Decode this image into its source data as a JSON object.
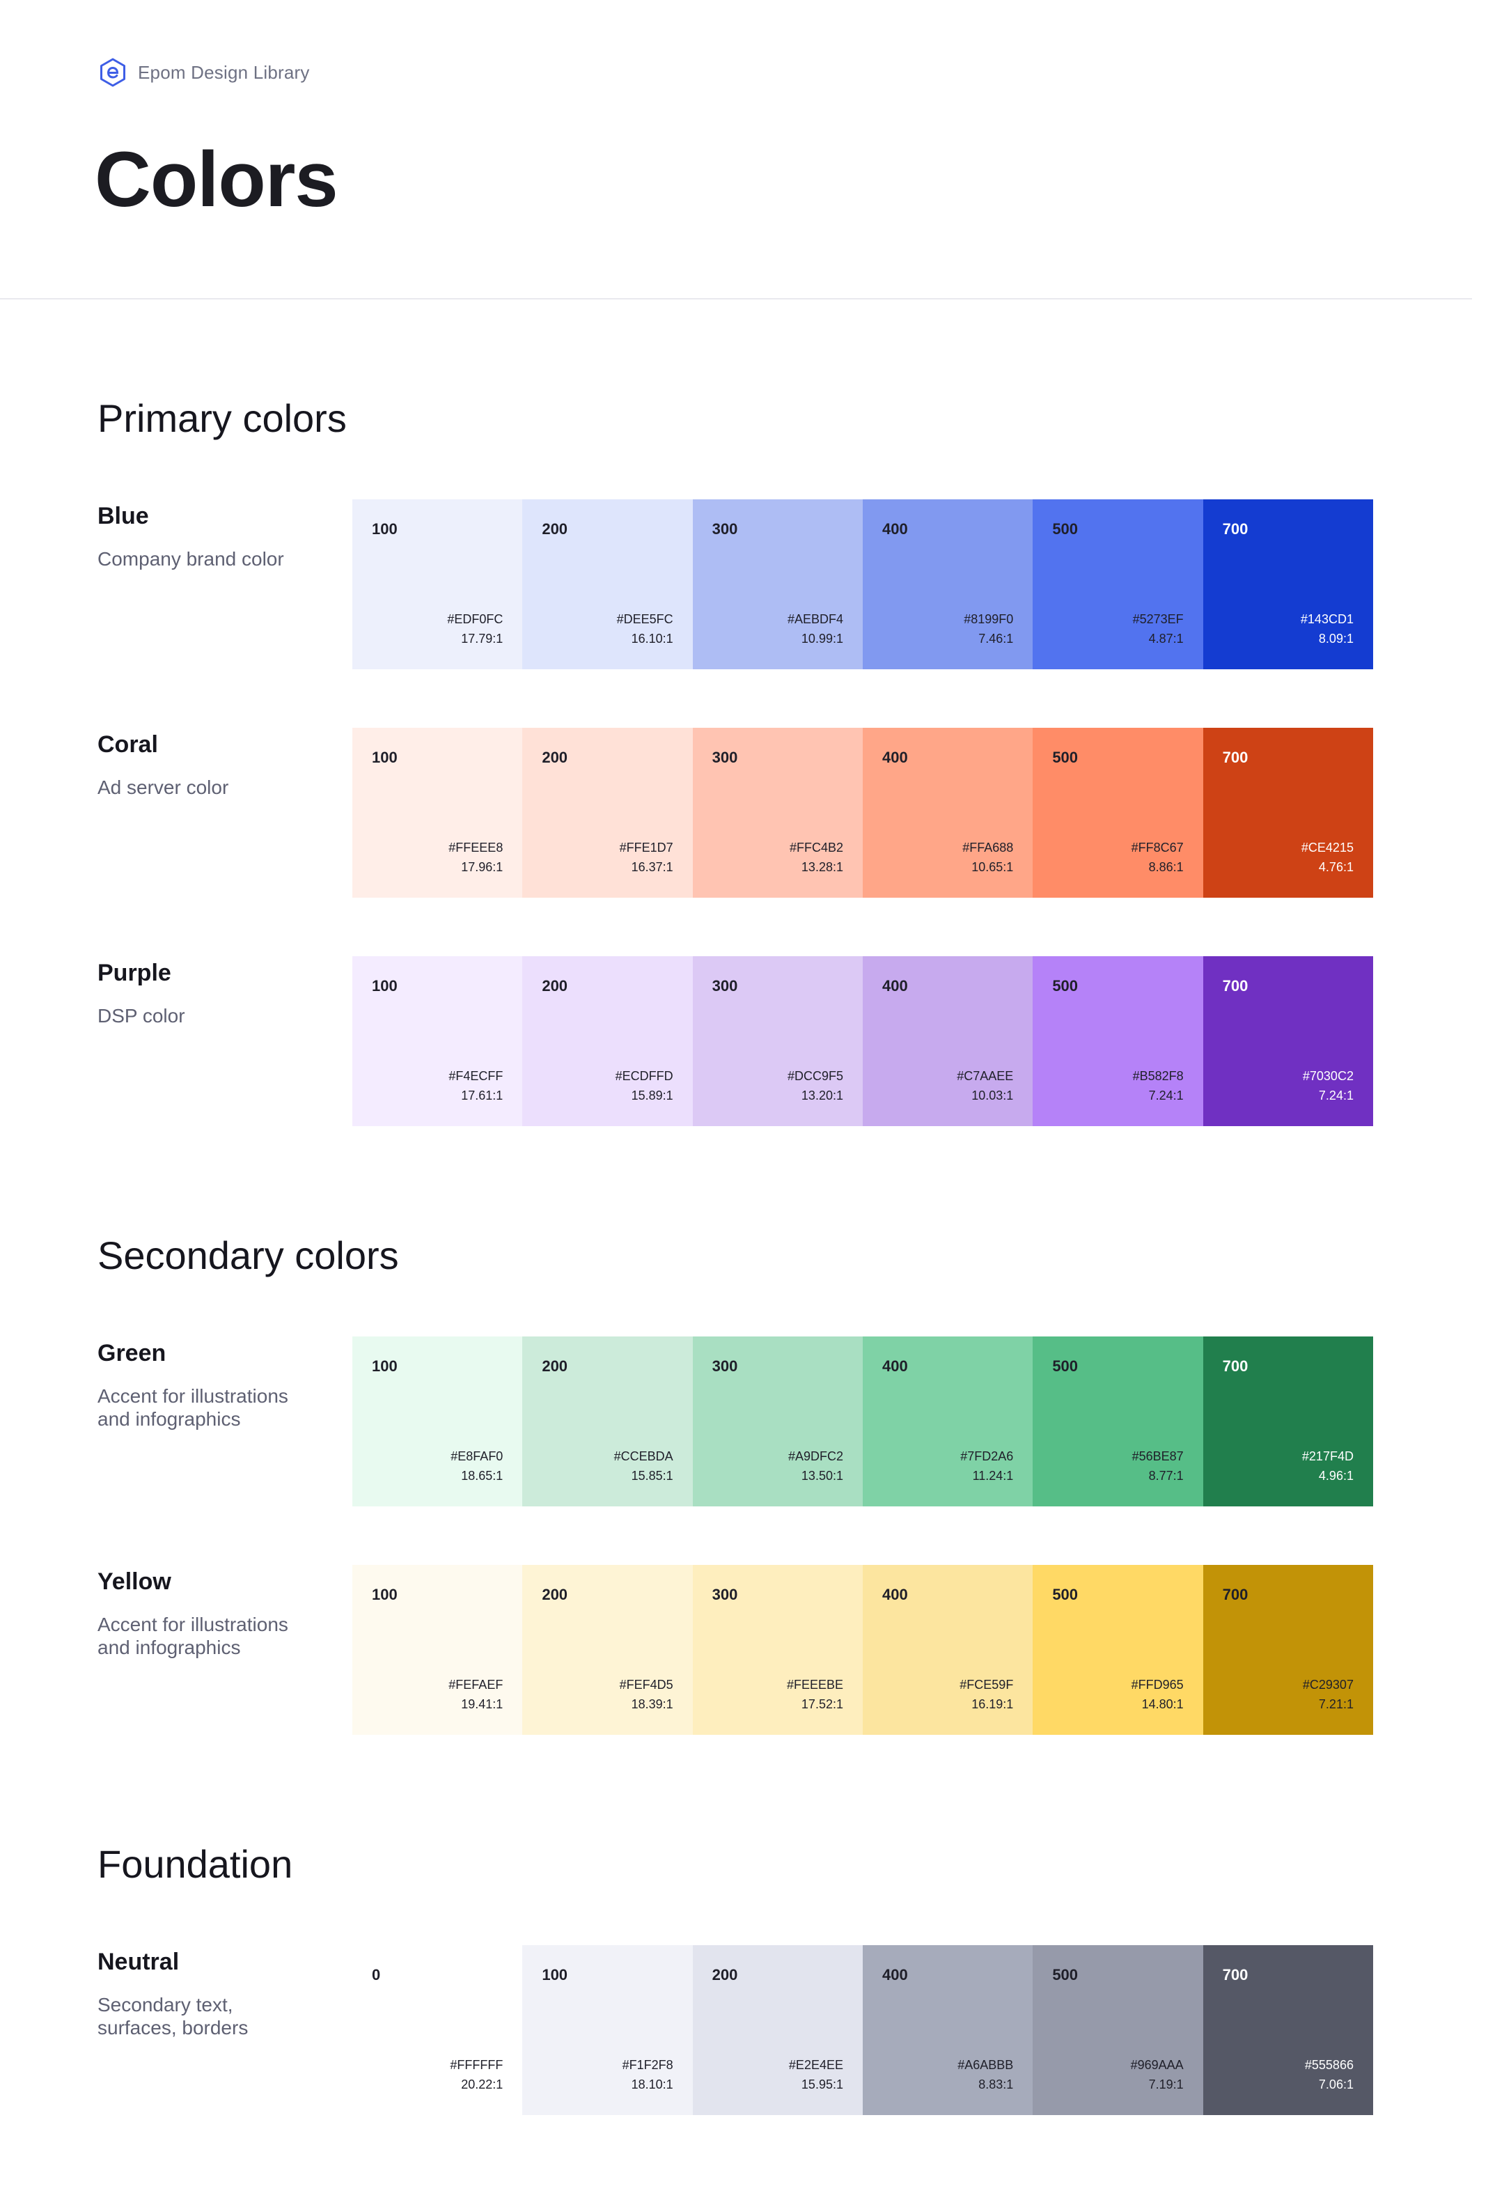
{
  "header": {
    "brand": "Epom Design Library",
    "brand_icon": "epom-logo-icon",
    "title": "Colors"
  },
  "sections": [
    {
      "title": "Primary colors",
      "groups": [
        {
          "name": "Blue",
          "description": "Company brand color",
          "swatches": [
            {
              "label": "100",
              "hex": "#EDF0FC",
              "ratio": "17.79:1",
              "color": "#EDF0FC",
              "text": "dark"
            },
            {
              "label": "200",
              "hex": "#DEE5FC",
              "ratio": "16.10:1",
              "color": "#DEE5FC",
              "text": "dark"
            },
            {
              "label": "300",
              "hex": "#AEBDF4",
              "ratio": "10.99:1",
              "color": "#AEBDF4",
              "text": "dark"
            },
            {
              "label": "400",
              "hex": "#8199F0",
              "ratio": "7.46:1",
              "color": "#8199F0",
              "text": "dark"
            },
            {
              "label": "500",
              "hex": "#5273EF",
              "ratio": "4.87:1",
              "color": "#5273EF",
              "text": "dark"
            },
            {
              "label": "700",
              "hex": "#143CD1",
              "ratio": "8.09:1",
              "color": "#143CD1",
              "text": "light"
            }
          ]
        },
        {
          "name": "Coral",
          "description": "Ad server color",
          "swatches": [
            {
              "label": "100",
              "hex": "#FFEEE8",
              "ratio": "17.96:1",
              "color": "#FFEEE8",
              "text": "dark"
            },
            {
              "label": "200",
              "hex": "#FFE1D7",
              "ratio": "16.37:1",
              "color": "#FFE1D7",
              "text": "dark"
            },
            {
              "label": "300",
              "hex": "#FFC4B2",
              "ratio": "13.28:1",
              "color": "#FFC4B2",
              "text": "dark"
            },
            {
              "label": "400",
              "hex": "#FFA688",
              "ratio": "10.65:1",
              "color": "#FFA688",
              "text": "dark"
            },
            {
              "label": "500",
              "hex": "#FF8C67",
              "ratio": "8.86:1",
              "color": "#FF8C67",
              "text": "dark"
            },
            {
              "label": "700",
              "hex": "#CE4215",
              "ratio": "4.76:1",
              "color": "#CE4215",
              "text": "light"
            }
          ]
        },
        {
          "name": "Purple",
          "description": "DSP color",
          "swatches": [
            {
              "label": "100",
              "hex": "#F4ECFF",
              "ratio": "17.61:1",
              "color": "#F4ECFF",
              "text": "dark"
            },
            {
              "label": "200",
              "hex": "#ECDFFD",
              "ratio": "15.89:1",
              "color": "#ECDFFD",
              "text": "dark"
            },
            {
              "label": "300",
              "hex": "#DCC9F5",
              "ratio": "13.20:1",
              "color": "#DCC9F5",
              "text": "dark"
            },
            {
              "label": "400",
              "hex": "#C7AAEE",
              "ratio": "10.03:1",
              "color": "#C7AAEE",
              "text": "dark"
            },
            {
              "label": "500",
              "hex": "#B582F8",
              "ratio": "7.24:1",
              "color": "#B582F8",
              "text": "dark"
            },
            {
              "label": "700",
              "hex": "#7030C2",
              "ratio": "7.24:1",
              "color": "#7030C2",
              "text": "light"
            }
          ]
        }
      ]
    },
    {
      "title": "Secondary colors",
      "groups": [
        {
          "name": "Green",
          "description": "Accent for illustrations and infographics",
          "swatches": [
            {
              "label": "100",
              "hex": "#E8FAF0",
              "ratio": "18.65:1",
              "color": "#E8FAF0",
              "text": "dark"
            },
            {
              "label": "200",
              "hex": "#CCEBDA",
              "ratio": "15.85:1",
              "color": "#CCEBDA",
              "text": "dark"
            },
            {
              "label": "300",
              "hex": "#A9DFC2",
              "ratio": "13.50:1",
              "color": "#A9DFC2",
              "text": "dark"
            },
            {
              "label": "400",
              "hex": "#7FD2A6",
              "ratio": "11.24:1",
              "color": "#7FD2A6",
              "text": "dark"
            },
            {
              "label": "500",
              "hex": "#56BE87",
              "ratio": "8.77:1",
              "color": "#56BE87",
              "text": "dark"
            },
            {
              "label": "700",
              "hex": "#217F4D",
              "ratio": "4.96:1",
              "color": "#217F4D",
              "text": "light"
            }
          ]
        },
        {
          "name": "Yellow",
          "description": "Accent for illustrations and infographics",
          "swatches": [
            {
              "label": "100",
              "hex": "#FEFAEF",
              "ratio": "19.41:1",
              "color": "#FEFAEF",
              "text": "dark"
            },
            {
              "label": "200",
              "hex": "#FEF4D5",
              "ratio": "18.39:1",
              "color": "#FEF4D5",
              "text": "dark"
            },
            {
              "label": "300",
              "hex": "#FEEEBE",
              "ratio": "17.52:1",
              "color": "#FEEEBE",
              "text": "dark"
            },
            {
              "label": "400",
              "hex": "#FCE59F",
              "ratio": "16.19:1",
              "color": "#FCE59F",
              "text": "dark"
            },
            {
              "label": "500",
              "hex": "#FFD965",
              "ratio": "14.80:1",
              "color": "#FFD965",
              "text": "dark"
            },
            {
              "label": "700",
              "hex": "#C29307",
              "ratio": "7.21:1",
              "color": "#C29307",
              "text": "dark"
            }
          ]
        }
      ]
    },
    {
      "title": "Foundation",
      "groups": [
        {
          "name": "Neutral",
          "description": "Secondary text, surfaces, borders",
          "bordered": true,
          "swatches": [
            {
              "label": "0",
              "hex": "#FFFFFF",
              "ratio": "20.22:1",
              "color": "#FFFFFF",
              "text": "dark"
            },
            {
              "label": "100",
              "hex": "#F1F2F8",
              "ratio": "18.10:1",
              "color": "#F1F2F8",
              "text": "dark"
            },
            {
              "label": "200",
              "hex": "#E2E4EE",
              "ratio": "15.95:1",
              "color": "#E2E4EE",
              "text": "dark"
            },
            {
              "label": "400",
              "hex": "#A6ABBB",
              "ratio": "8.83:1",
              "color": "#A6ABBB",
              "text": "dark"
            },
            {
              "label": "500",
              "hex": "#969AAA",
              "ratio": "7.19:1",
              "color": "#969AAA",
              "text": "dark"
            },
            {
              "label": "700",
              "hex": "#555866",
              "ratio": "7.06:1",
              "color": "#555866",
              "text": "light"
            }
          ]
        }
      ]
    }
  ]
}
